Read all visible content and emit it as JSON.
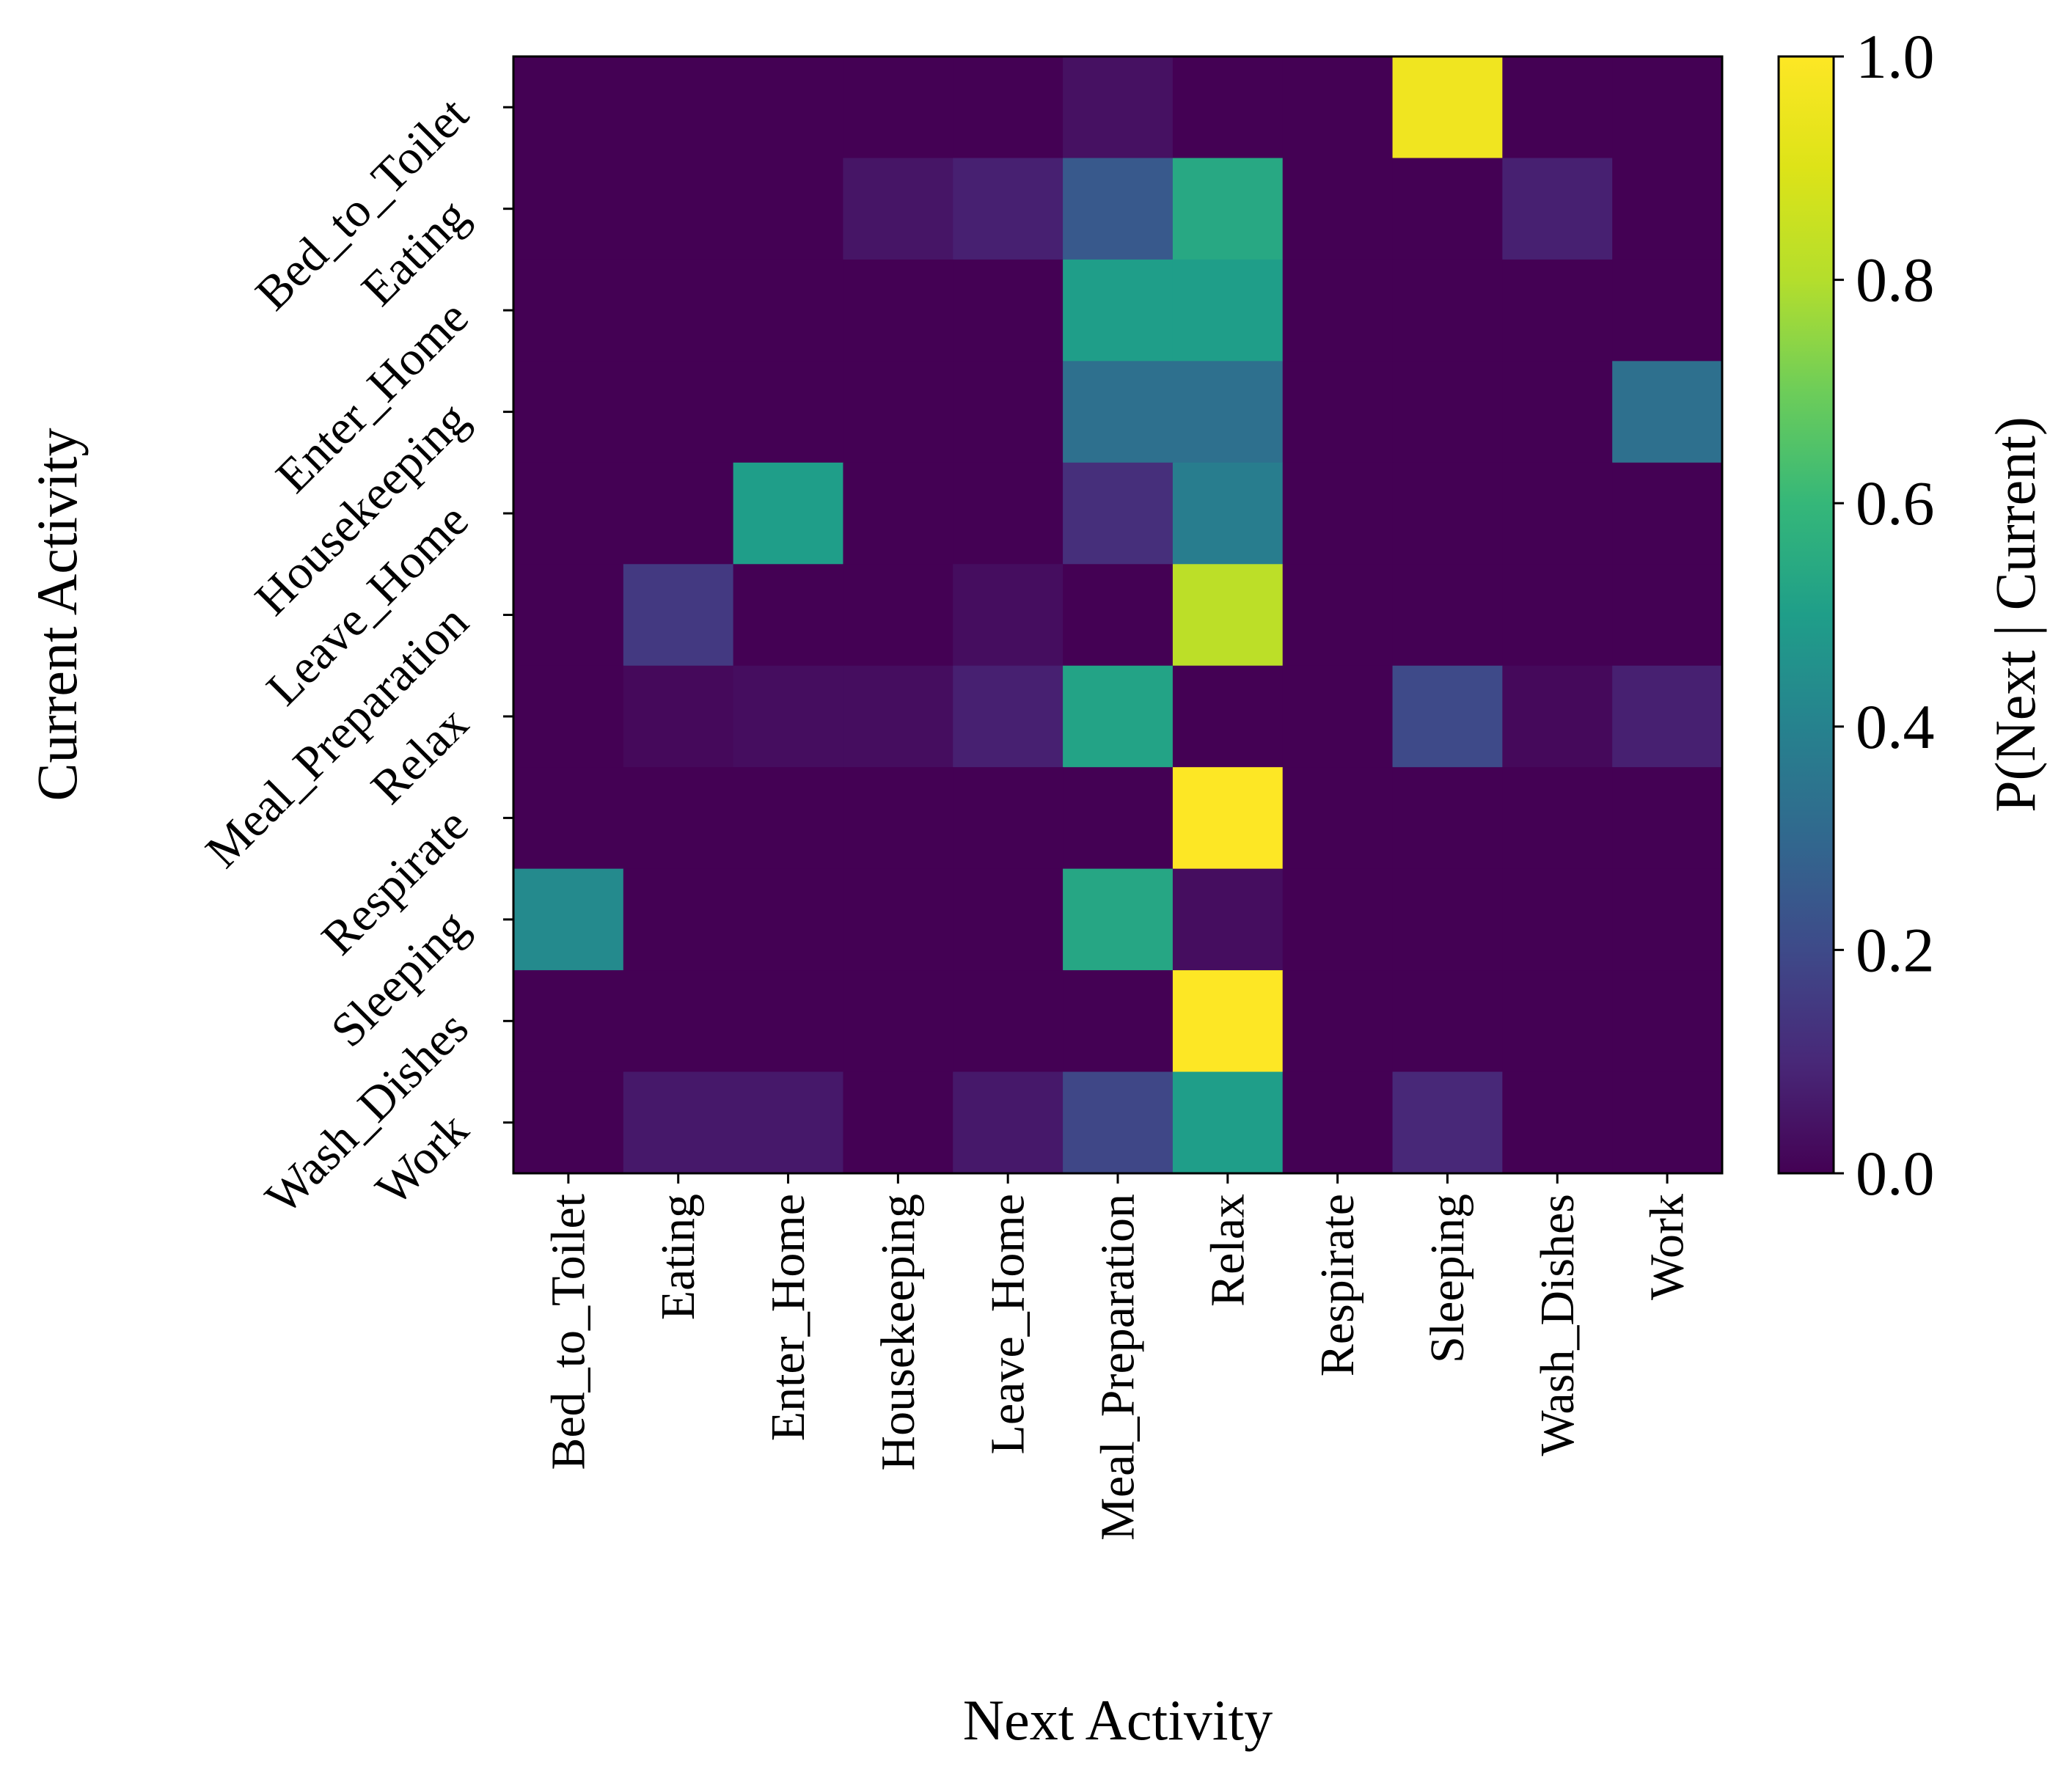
{
  "chart_data": {
    "type": "heatmap",
    "title": "",
    "xlabel": "Next Activity",
    "ylabel": "Current Activity",
    "x_categories": [
      "Bed_to_Toilet",
      "Eating",
      "Enter_Home",
      "Housekeeping",
      "Leave_Home",
      "Meal_Preparation",
      "Relax",
      "Respirate",
      "Sleeping",
      "Wash_Dishes",
      "Work"
    ],
    "y_categories": [
      "Bed_to_Toilet",
      "Eating",
      "Enter_Home",
      "Housekeeping",
      "Leave_Home",
      "Meal_Preparation",
      "Relax",
      "Respirate",
      "Sleeping",
      "Wash_Dishes",
      "Work"
    ],
    "values": [
      [
        0.0,
        0.0,
        0.0,
        0.0,
        0.0,
        0.04,
        0.0,
        0.0,
        0.96,
        0.0,
        0.0
      ],
      [
        0.0,
        0.0,
        0.0,
        0.05,
        0.08,
        0.25,
        0.54,
        0.0,
        0.0,
        0.08,
        0.0
      ],
      [
        0.0,
        0.0,
        0.0,
        0.0,
        0.0,
        0.5,
        0.5,
        0.0,
        0.0,
        0.0,
        0.0
      ],
      [
        0.0,
        0.0,
        0.0,
        0.0,
        0.0,
        0.33,
        0.33,
        0.0,
        0.0,
        0.0,
        0.33
      ],
      [
        0.0,
        0.0,
        0.5,
        0.0,
        0.0,
        0.12,
        0.38,
        0.0,
        0.0,
        0.0,
        0.0
      ],
      [
        0.0,
        0.15,
        0.0,
        0.0,
        0.03,
        0.0,
        0.82,
        0.0,
        0.0,
        0.0,
        0.0
      ],
      [
        0.0,
        0.02,
        0.03,
        0.03,
        0.08,
        0.52,
        0.0,
        0.0,
        0.2,
        0.02,
        0.08
      ],
      [
        0.0,
        0.0,
        0.0,
        0.0,
        0.0,
        0.0,
        1.0,
        0.0,
        0.0,
        0.0,
        0.0
      ],
      [
        0.43,
        0.0,
        0.0,
        0.0,
        0.0,
        0.53,
        0.03,
        0.0,
        0.0,
        0.0,
        0.0
      ],
      [
        0.0,
        0.0,
        0.0,
        0.0,
        0.0,
        0.0,
        1.0,
        0.0,
        0.0,
        0.0,
        0.0
      ],
      [
        0.0,
        0.06,
        0.06,
        0.0,
        0.06,
        0.19,
        0.5,
        0.0,
        0.1,
        0.0,
        0.0
      ]
    ],
    "colormap": "viridis",
    "vmin": 0.0,
    "vmax": 1.0,
    "colorbar": {
      "label": "P(Next | Current)",
      "ticks": [
        0.0,
        0.2,
        0.4,
        0.6,
        0.8,
        1.0
      ],
      "tick_labels": [
        "0.0",
        "0.2",
        "0.4",
        "0.6",
        "0.8",
        "1.0"
      ]
    },
    "y_tick_rotation_deg": 45,
    "x_tick_rotation_deg": 90,
    "grid": false
  }
}
